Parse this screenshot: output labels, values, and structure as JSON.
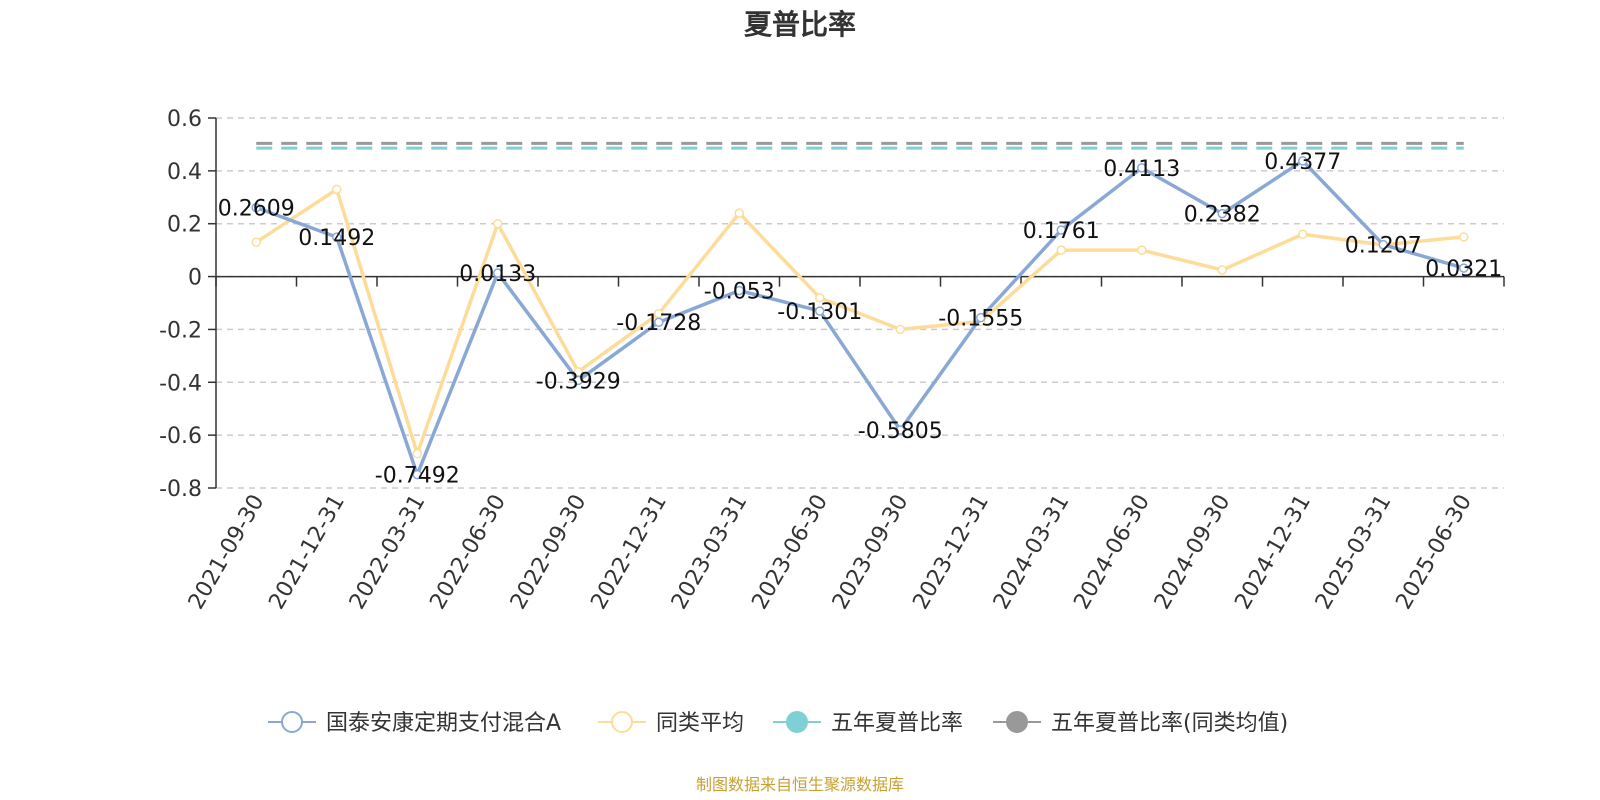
{
  "chart_data": {
    "type": "line",
    "title": "夏普比率",
    "categories": [
      "2021-09-30",
      "2021-12-31",
      "2022-03-31",
      "2022-06-30",
      "2022-09-30",
      "2022-12-31",
      "2023-03-31",
      "2023-06-30",
      "2023-09-30",
      "2023-12-31",
      "2024-03-31",
      "2024-06-30",
      "2024-09-30",
      "2024-12-31",
      "2025-03-31",
      "2025-06-30"
    ],
    "ylim": [
      -0.8,
      0.6
    ],
    "yticks": [
      "0.6",
      "0.4",
      "0.2",
      "0",
      "-0.2",
      "-0.4",
      "-0.6",
      "-0.8"
    ],
    "ytick_values": [
      0.6,
      0.4,
      0.2,
      0,
      -0.2,
      -0.4,
      -0.6,
      -0.8
    ],
    "grid": true,
    "legend_position": "bottom",
    "series": [
      {
        "name": "国泰安康定期支付混合A",
        "color": "#8aa8d6",
        "values": [
          0.2609,
          0.1492,
          -0.7492,
          0.0133,
          -0.3929,
          -0.1728,
          -0.053,
          -0.1301,
          -0.5805,
          -0.1555,
          0.1761,
          0.4113,
          0.2382,
          0.4377,
          0.1207,
          0.0321
        ],
        "labels": [
          "0.2609",
          "0.1492",
          "-0.7492",
          "0.0133",
          "-0.3929",
          "-0.1728",
          "-0.053",
          "-0.1301",
          "-0.5805",
          "-0.1555",
          "0.1761",
          "0.4113",
          "0.2382",
          "0.4377",
          "0.1207",
          "0.0321"
        ]
      },
      {
        "name": "同类平均",
        "color": "#fddc9a",
        "values": [
          0.13,
          0.33,
          -0.67,
          0.2,
          -0.36,
          -0.14,
          0.24,
          -0.08,
          -0.2,
          -0.17,
          0.1,
          0.1,
          0.025,
          0.16,
          0.12,
          0.15
        ]
      },
      {
        "name": "五年夏普比率",
        "color": "#7fd0d4",
        "style": "dashed",
        "value": 0.49
      },
      {
        "name": "五年夏普比率(同类均值)",
        "color": "#999999",
        "style": "dashed",
        "value": 0.5
      }
    ],
    "source": "制图数据来自恒生聚源数据库"
  }
}
